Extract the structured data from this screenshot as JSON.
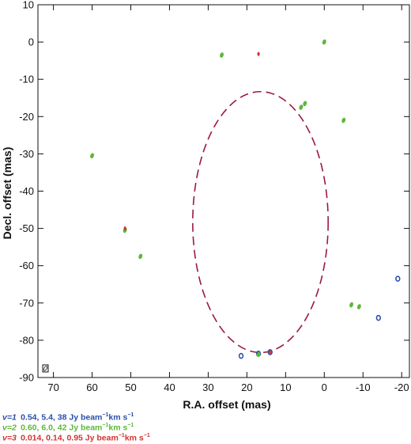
{
  "chart_data": {
    "type": "scatter",
    "xlabel": "R.A. offset  (mas)",
    "ylabel": "Decl. offset  (mas)",
    "xlim": [
      74,
      -22
    ],
    "ylim": [
      -90,
      10
    ],
    "xticks": [
      70,
      60,
      50,
      40,
      30,
      20,
      10,
      0,
      -10,
      -20
    ],
    "yticks": [
      10,
      0,
      -10,
      -20,
      -30,
      -40,
      -50,
      -60,
      -70,
      -80,
      -90
    ],
    "ring": {
      "center": [
        16.5,
        -48.3
      ],
      "rx": 17.5,
      "ry": 35.0,
      "style": "dashed",
      "color": "#9b1a3c"
    },
    "series": [
      {
        "name": "v=1",
        "color": "#2a4fa8",
        "points": [
          [
            21.5,
            -84.2
          ],
          [
            17,
            -83.6
          ],
          [
            14,
            -83.2
          ],
          [
            -14,
            -74
          ],
          [
            -19,
            -63.5
          ]
        ]
      },
      {
        "name": "v=2",
        "color": "#5cb83a",
        "points": [
          [
            26.5,
            -3.5
          ],
          [
            0,
            0
          ],
          [
            6,
            -17.5
          ],
          [
            5,
            -16.5
          ],
          [
            -5,
            -21
          ],
          [
            60,
            -30.5
          ],
          [
            51.5,
            -50.5
          ],
          [
            47.5,
            -57.5
          ],
          [
            -7,
            -70.5
          ],
          [
            -9,
            -71
          ],
          [
            17,
            -83.8
          ]
        ]
      },
      {
        "name": "v=3",
        "color": "#d63030",
        "points": [
          [
            17,
            -3.2
          ],
          [
            51.5,
            -50
          ],
          [
            14,
            -83.2
          ]
        ]
      }
    ],
    "legend": [
      {
        "label": "v=1",
        "text": "0.54, 5.4, 38 Jy beam",
        "unit_tail": "km s",
        "color": "#2a4fa8"
      },
      {
        "label": "v=2",
        "text": "0.60, 6.0, 42 Jy beam",
        "unit_tail": "km s",
        "color": "#5cb83a"
      },
      {
        "label": "v=3",
        "text": "0.014, 0.14, 0.95 Jy beam",
        "unit_tail": "km s",
        "color": "#d63030"
      }
    ],
    "beam_marker": {
      "position": "bottom-left"
    },
    "grid": false
  }
}
